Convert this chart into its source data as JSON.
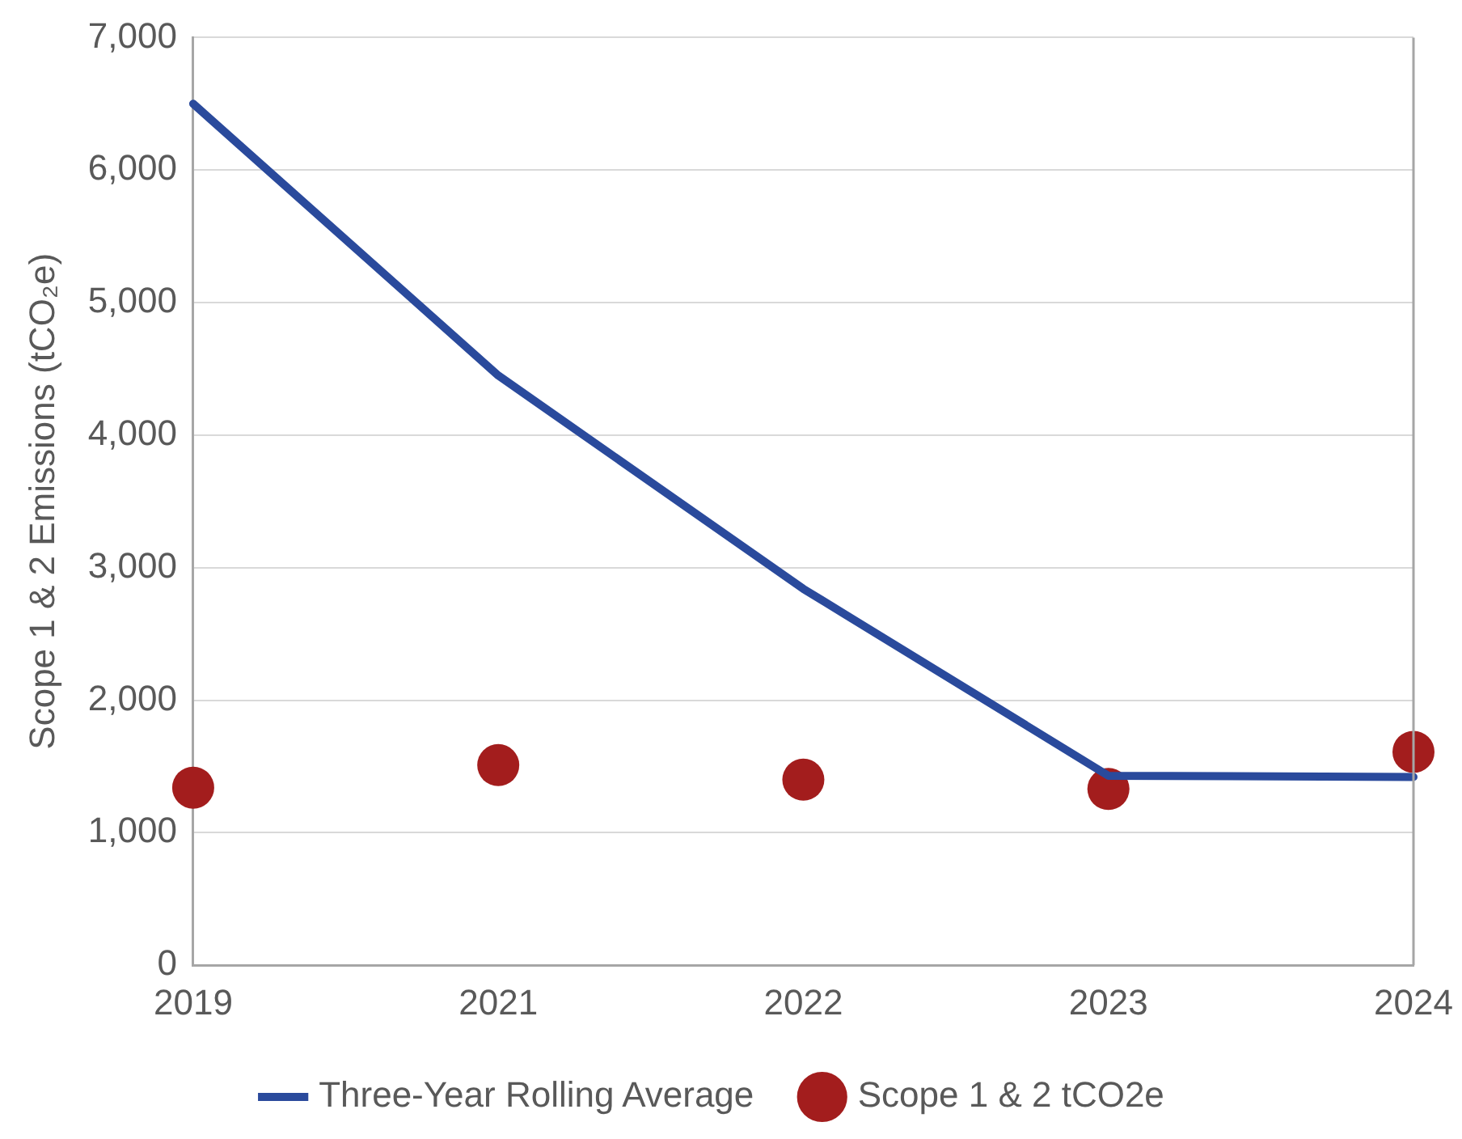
{
  "chart_data": {
    "type": "line",
    "ylabel": "Scope 1 & 2 Emissions (tCO₂e)",
    "categories": [
      "2019",
      "2021",
      "2022",
      "2023",
      "2024"
    ],
    "series": [
      {
        "name": "Three-Year Rolling Average",
        "color": "#2a4a9c",
        "marker": "none",
        "line_style": "solid",
        "values": [
          6500,
          4450,
          2840,
          1430,
          1420
        ]
      },
      {
        "name": "Scope 1 & 2 tCO2e",
        "type": "scatter",
        "color": "#a31d1d",
        "marker": "circle",
        "values": [
          1340,
          1510,
          1400,
          1330,
          1610
        ]
      }
    ],
    "ylim": [
      0,
      7000
    ],
    "yticks": [
      0,
      {
        "value": 1000,
        "label": "1,000"
      },
      {
        "value": 2000,
        "label": "2,000"
      },
      {
        "value": 3000,
        "label": "3,000"
      },
      {
        "value": 4000,
        "label": "4,000"
      },
      {
        "value": 5000,
        "label": "5,000"
      },
      {
        "value": 6000,
        "label": "6,000"
      },
      {
        "value": 7000,
        "label": "7,000"
      }
    ],
    "grid": "y",
    "legend": "bottom"
  }
}
